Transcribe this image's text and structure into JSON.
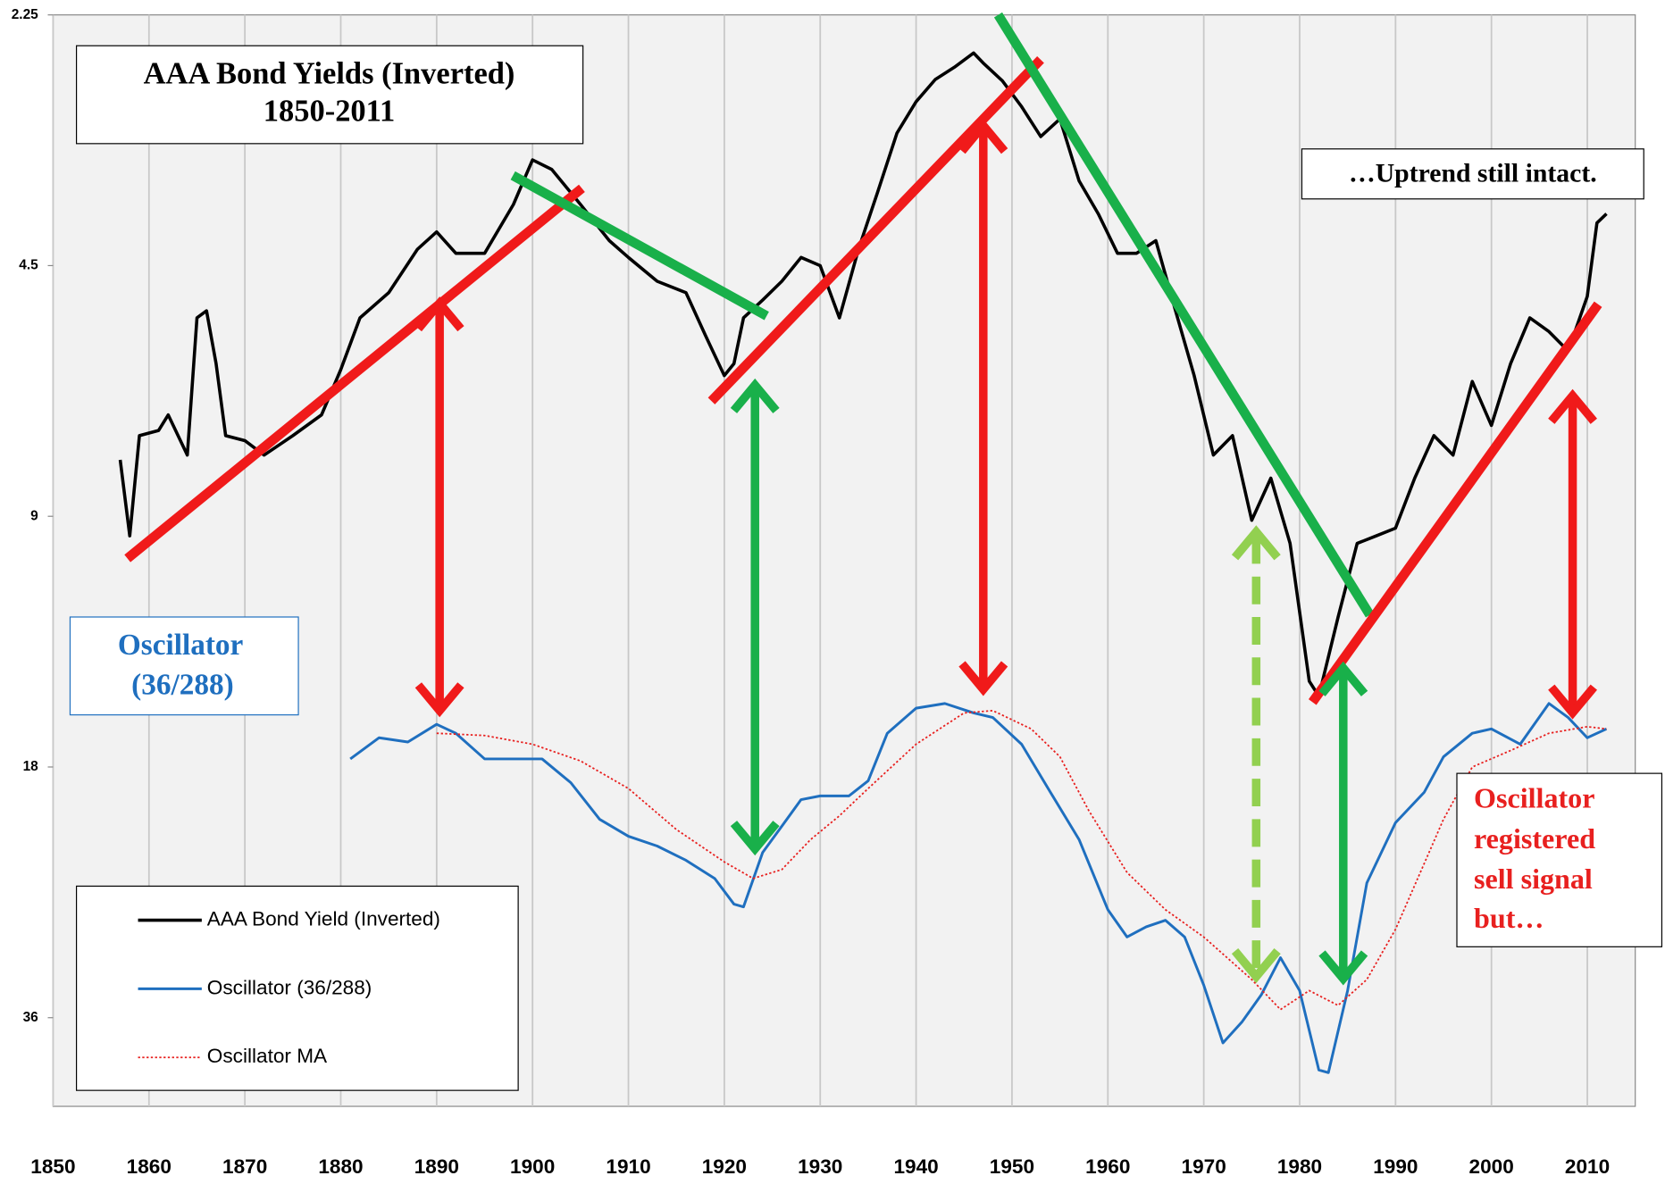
{
  "chart_data": {
    "type": "line",
    "title": [
      "AAA Bond Yields (Inverted)",
      "1850-2011"
    ],
    "annotations": [
      "…Uptrend still intact.",
      "Oscillator",
      "(36/288)",
      "Oscillator",
      "registered",
      "sell signal",
      "but…"
    ],
    "log_scale": true,
    "inverted": true,
    "grid": true,
    "legend": "lower left",
    "xlim": [
      1850,
      2015
    ],
    "xticks": [
      1850,
      1860,
      1870,
      1880,
      1890,
      1900,
      1910,
      1920,
      1930,
      1940,
      1950,
      1960,
      1970,
      1980,
      1990,
      2000,
      2010
    ],
    "ylim": [
      2.25,
      46
    ],
    "yticks": [
      2.25,
      4.5,
      9,
      18,
      36
    ],
    "series": [
      {
        "name": "AAA Bond Yield (Inverted)",
        "color": "#000000",
        "style": "solid",
        "x": [
          1857,
          1858,
          1859,
          1861,
          1862,
          1864,
          1865,
          1866,
          1867,
          1868,
          1870,
          1872,
          1875,
          1878,
          1880,
          1882,
          1885,
          1888,
          1890,
          1892,
          1895,
          1898,
          1900,
          1902,
          1905,
          1908,
          1910,
          1913,
          1916,
          1918,
          1920,
          1921,
          1922,
          1924,
          1926,
          1928,
          1930,
          1932,
          1934,
          1936,
          1938,
          1940,
          1942,
          1944,
          1946,
          1947,
          1949,
          1951,
          1953,
          1955,
          1957,
          1959,
          1961,
          1963,
          1965,
          1967,
          1969,
          1971,
          1973,
          1975,
          1977,
          1979,
          1981,
          1982,
          1984,
          1986,
          1988,
          1990,
          1992,
          1994,
          1996,
          1998,
          2000,
          2002,
          2004,
          2006,
          2008,
          2010,
          2011,
          2012
        ],
        "values": [
          7.7,
          9.5,
          7.2,
          7.1,
          6.8,
          7.6,
          5.2,
          5.1,
          5.9,
          7.2,
          7.3,
          7.6,
          7.2,
          6.8,
          6.0,
          5.2,
          4.85,
          4.3,
          4.1,
          4.35,
          4.35,
          3.8,
          3.36,
          3.45,
          3.8,
          4.2,
          4.4,
          4.7,
          4.85,
          5.45,
          6.1,
          5.9,
          5.2,
          4.95,
          4.7,
          4.4,
          4.5,
          5.2,
          4.3,
          3.67,
          3.12,
          2.86,
          2.69,
          2.6,
          2.5,
          2.57,
          2.7,
          2.9,
          3.15,
          3.0,
          3.56,
          3.9,
          4.35,
          4.35,
          4.2,
          5.07,
          6.1,
          7.6,
          7.2,
          9.1,
          8.1,
          9.7,
          14.2,
          14.8,
          11.9,
          9.7,
          9.5,
          9.3,
          8.1,
          7.2,
          7.6,
          6.2,
          7.0,
          5.9,
          5.2,
          5.4,
          5.7,
          4.9,
          4.0,
          3.9
        ]
      },
      {
        "name": "Oscillator (36/288)",
        "color": "#1f6fbf",
        "style": "solid",
        "x": [
          1881,
          1884,
          1887,
          1890,
          1892,
          1895,
          1898,
          1901,
          1904,
          1907,
          1910,
          1913,
          1916,
          1919,
          1921,
          1922,
          1924,
          1926,
          1928,
          1930,
          1933,
          1935,
          1937,
          1940,
          1943,
          1946,
          1948,
          1951,
          1954,
          1957,
          1960,
          1962,
          1964,
          1966,
          1968,
          1970,
          1972,
          1974,
          1976,
          1978,
          1980,
          1982,
          1983,
          1985,
          1987,
          1990,
          1993,
          1995,
          1998,
          2000,
          2003,
          2006,
          2008,
          2010,
          2012
        ],
        "values": [
          17.6,
          16.6,
          16.8,
          16.0,
          16.4,
          17.6,
          17.6,
          17.6,
          18.8,
          20.8,
          21.8,
          22.4,
          23.3,
          24.5,
          26.3,
          26.5,
          22.8,
          21.2,
          19.7,
          19.5,
          19.5,
          18.7,
          16.4,
          15.3,
          15.1,
          15.5,
          15.7,
          16.9,
          19.3,
          22.0,
          26.7,
          28.8,
          28.0,
          27.5,
          28.8,
          32.9,
          38.6,
          36.4,
          33.8,
          30.5,
          33.4,
          41.6,
          41.9,
          33.4,
          24.8,
          21.0,
          19.3,
          17.5,
          16.4,
          16.2,
          16.9,
          15.1,
          15.7,
          16.6,
          16.2
        ]
      },
      {
        "name": "Oscillator MA",
        "color": "#e8201f",
        "style": "dotted",
        "x": [
          1890,
          1895,
          1900,
          1905,
          1910,
          1915,
          1920,
          1923,
          1926,
          1929,
          1932,
          1935,
          1940,
          1945,
          1948,
          1952,
          1955,
          1958,
          1962,
          1966,
          1970,
          1975,
          1978,
          1981,
          1984,
          1987,
          1990,
          1995,
          1998,
          2002,
          2006,
          2010,
          2012
        ],
        "values": [
          16.4,
          16.5,
          16.9,
          17.7,
          19.1,
          21.4,
          23.4,
          24.5,
          23.9,
          22.0,
          20.6,
          19.1,
          16.9,
          15.5,
          15.4,
          16.2,
          17.5,
          20.3,
          24.1,
          26.7,
          28.8,
          32.4,
          35.2,
          33.4,
          34.8,
          32.4,
          28.2,
          20.8,
          18.0,
          17.2,
          16.4,
          16.1,
          16.2
        ]
      }
    ]
  }
}
